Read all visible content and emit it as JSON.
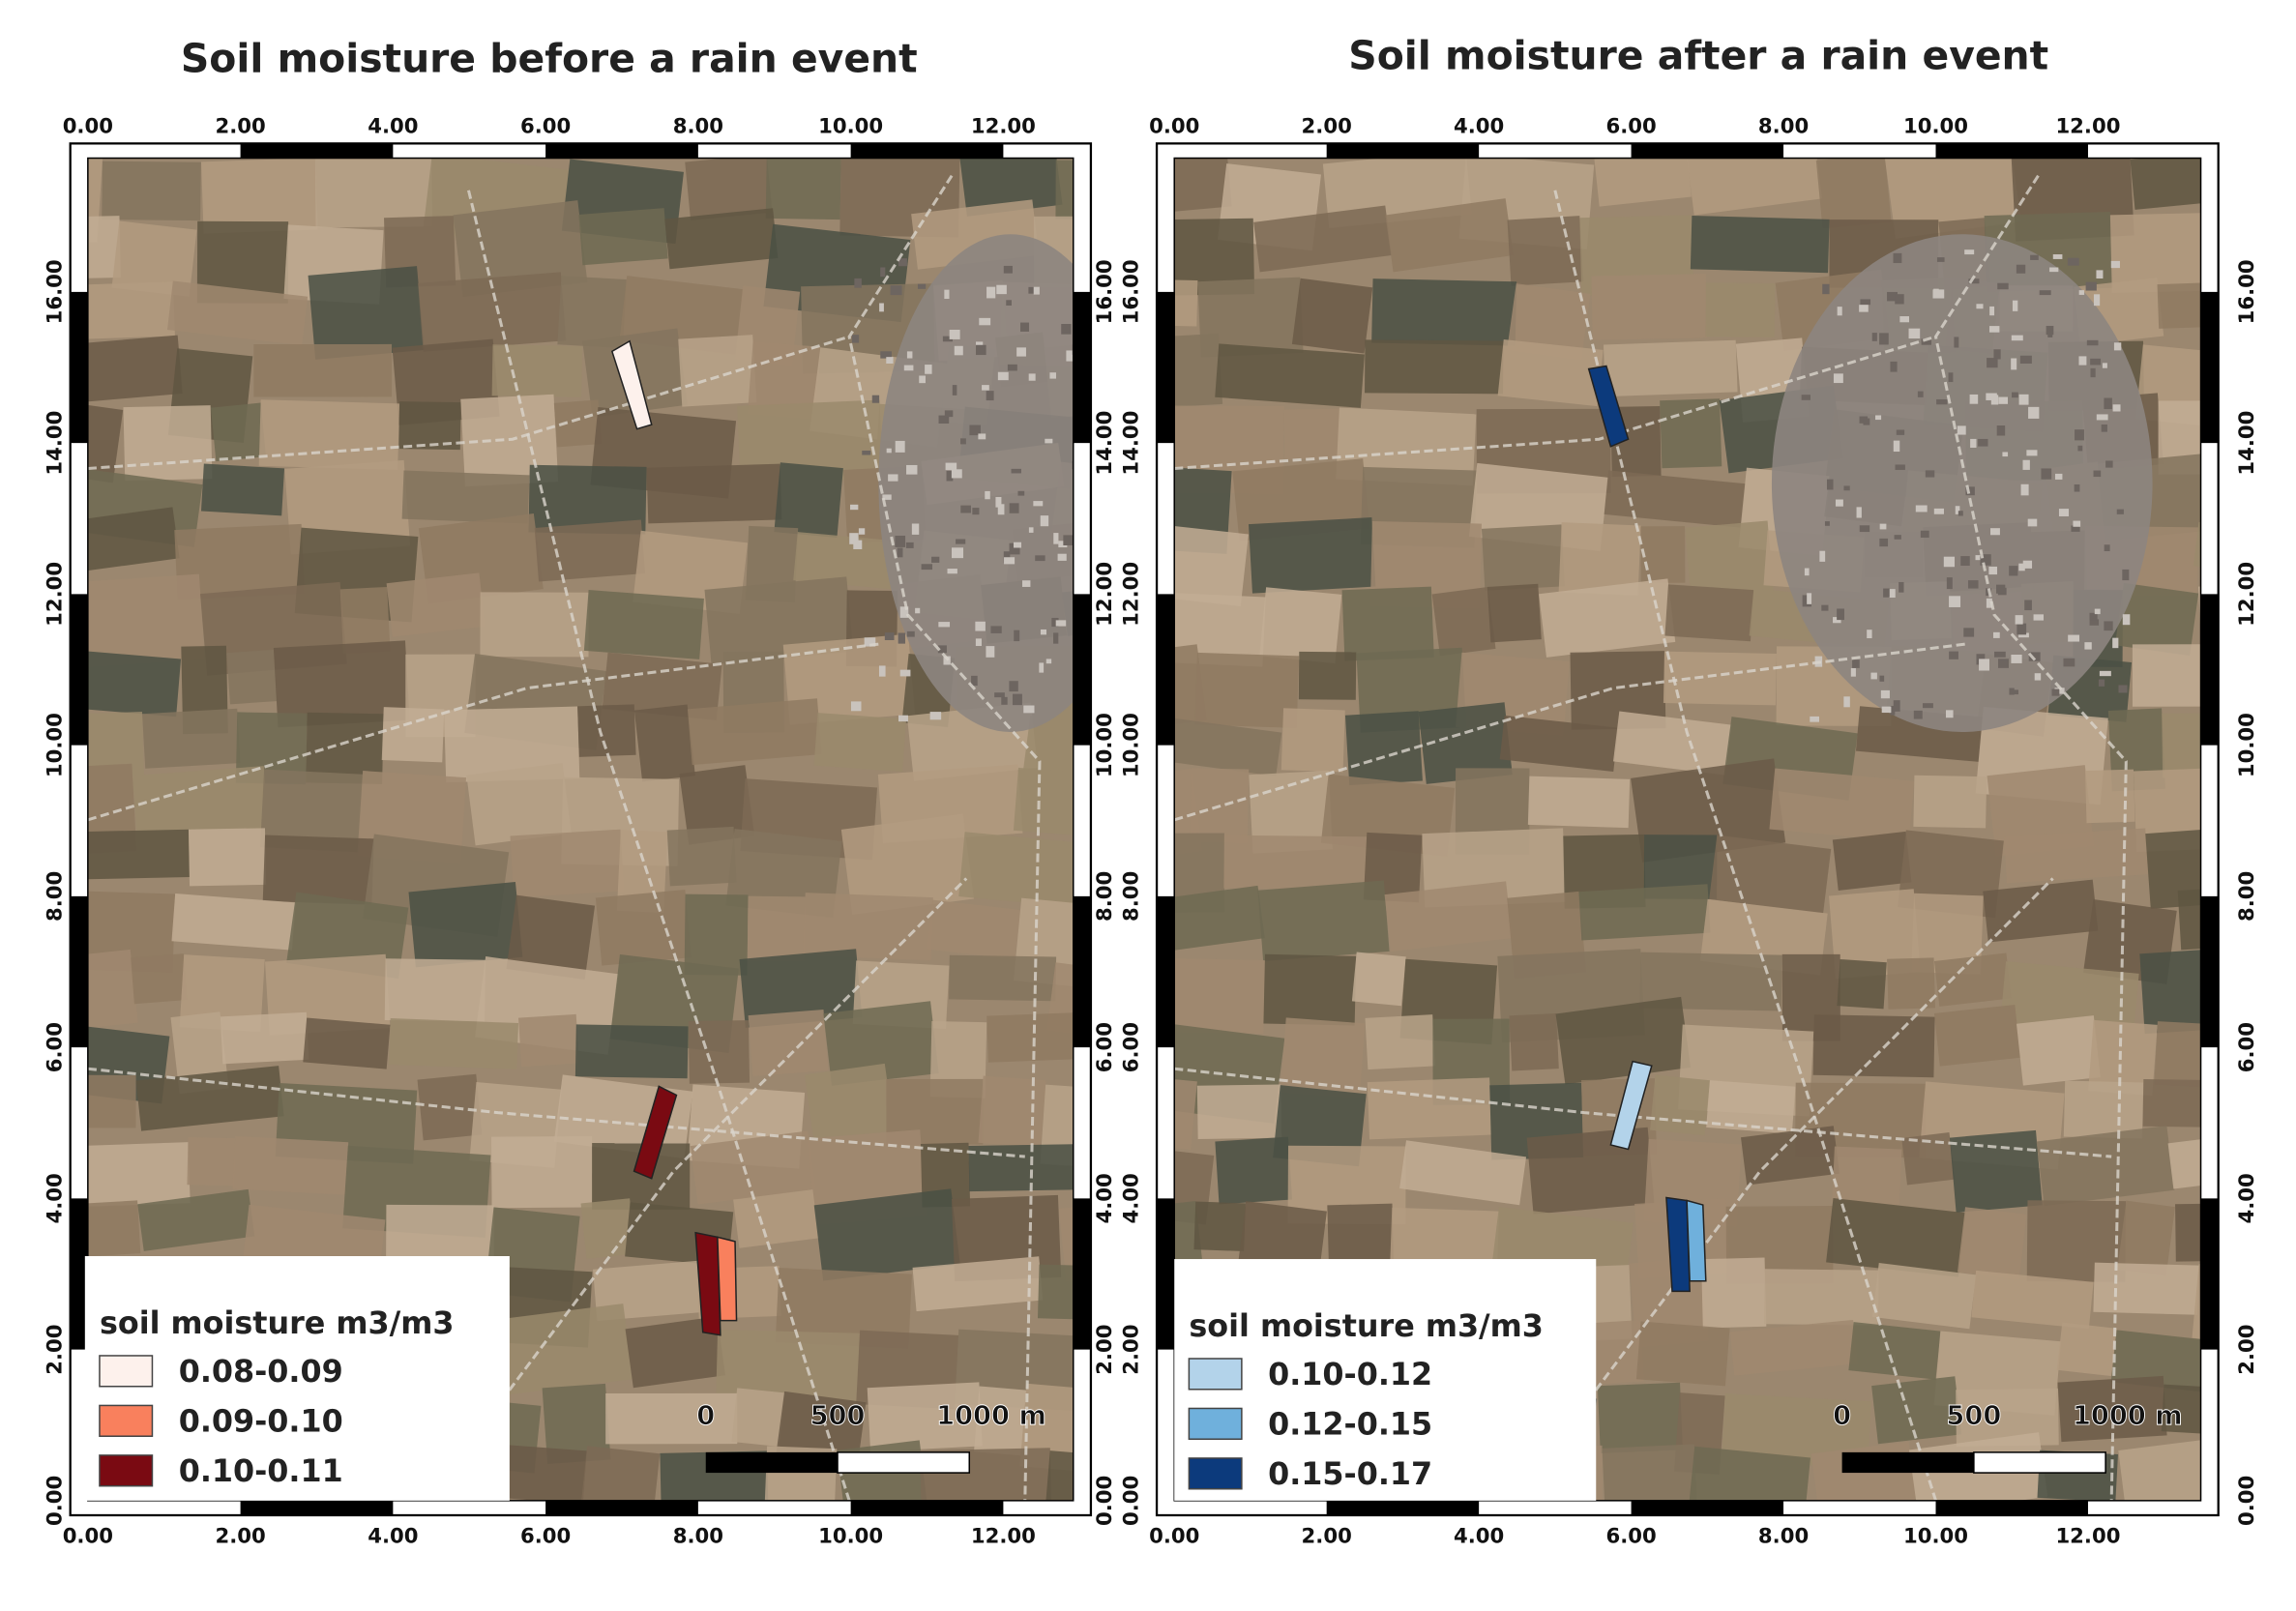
{
  "panels": [
    {
      "title": "Soil moisture before a rain event",
      "x_ticks": [
        {
          "value": 0,
          "label": "0.00"
        },
        {
          "value": 2,
          "label": "2.00"
        },
        {
          "value": 4,
          "label": "4.00"
        },
        {
          "value": 6,
          "label": "6.00"
        },
        {
          "value": 8,
          "label": "8.00"
        },
        {
          "value": 10,
          "label": "10.00"
        },
        {
          "value": 12,
          "label": "12.00"
        }
      ],
      "y_ticks": [
        {
          "value": 0,
          "label": "0.00"
        },
        {
          "value": 2,
          "label": "2.00"
        },
        {
          "value": 4,
          "label": "4.00"
        },
        {
          "value": 6,
          "label": "6.00"
        },
        {
          "value": 8,
          "label": "8.00"
        },
        {
          "value": 10,
          "label": "10.00"
        },
        {
          "value": 12,
          "label": "12.00"
        },
        {
          "value": 14,
          "label": "14.00"
        },
        {
          "value": 16,
          "label": "16.00"
        }
      ],
      "legend": {
        "title": "soil moisture m3/m3",
        "entries": [
          {
            "label": "0.08-0.09",
            "color": "#fdf1ec"
          },
          {
            "label": "0.09-0.10",
            "color": "#f9805d"
          },
          {
            "label": "0.10-0.11",
            "color": "#7a0a12"
          }
        ]
      },
      "scale_bar": {
        "labels": [
          "0",
          "500",
          "1000 m"
        ]
      }
    },
    {
      "title": "Soil moisture after a rain event",
      "x_ticks": [
        {
          "value": 0,
          "label": "0.00"
        },
        {
          "value": 2,
          "label": "2.00"
        },
        {
          "value": 4,
          "label": "4.00"
        },
        {
          "value": 6,
          "label": "6.00"
        },
        {
          "value": 8,
          "label": "8.00"
        },
        {
          "value": 10,
          "label": "10.00"
        },
        {
          "value": 12,
          "label": "12.00"
        }
      ],
      "y_ticks": [
        {
          "value": 0,
          "label": "0.00"
        },
        {
          "value": 2,
          "label": "2.00"
        },
        {
          "value": 4,
          "label": "4.00"
        },
        {
          "value": 6,
          "label": "6.00"
        },
        {
          "value": 8,
          "label": "8.00"
        },
        {
          "value": 10,
          "label": "10.00"
        },
        {
          "value": 12,
          "label": "12.00"
        },
        {
          "value": 14,
          "label": "14.00"
        },
        {
          "value": 16,
          "label": "16.00"
        }
      ],
      "legend": {
        "title": "soil moisture m3/m3",
        "entries": [
          {
            "label": "0.10-0.12",
            "color": "#b3d3ea"
          },
          {
            "label": "0.12-0.15",
            "color": "#6fb0dc"
          },
          {
            "label": "0.15-0.17",
            "color": "#0c3a7c"
          }
        ]
      },
      "scale_bar": {
        "labels": [
          "0",
          "500",
          "1000 m"
        ]
      }
    }
  ]
}
